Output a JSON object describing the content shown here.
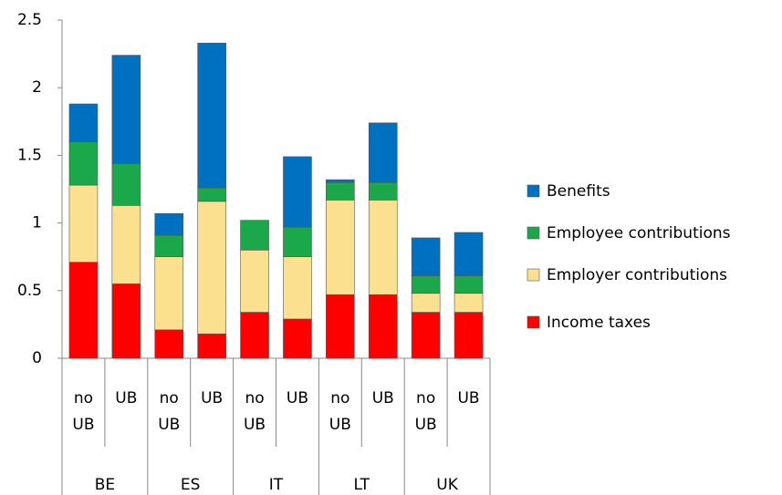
{
  "chart_data": {
    "type": "stacked_bar",
    "categories": [
      "no UB",
      "UB",
      "no UB",
      "UB",
      "no UB",
      "UB",
      "no UB",
      "UB",
      "no UB",
      "UB"
    ],
    "groups": [
      "BE",
      "ES",
      "IT",
      "LT",
      "UK"
    ],
    "series": [
      {
        "name": "Income taxes",
        "color": "#ff0000",
        "values": [
          0.71,
          0.55,
          0.21,
          0.18,
          0.34,
          0.29,
          0.47,
          0.47,
          0.34,
          0.34
        ]
      },
      {
        "name": "Employer contributions",
        "color": "#fbe08f",
        "values": [
          0.57,
          0.58,
          0.54,
          0.98,
          0.46,
          0.46,
          0.7,
          0.7,
          0.14,
          0.14
        ]
      },
      {
        "name": "Employee contributions",
        "color": "#1aa84a",
        "values": [
          0.32,
          0.31,
          0.16,
          0.1,
          0.22,
          0.22,
          0.13,
          0.13,
          0.13,
          0.13
        ]
      },
      {
        "name": "Benefits",
        "color": "#0070c0",
        "values": [
          0.28,
          0.8,
          0.16,
          1.07,
          0,
          0.52,
          0.02,
          0.44,
          0.28,
          0.32
        ]
      }
    ],
    "ylim": [
      0,
      2.5
    ],
    "yticks": [
      0,
      0.5,
      1,
      1.5,
      2,
      2.5
    ],
    "legend": "right"
  }
}
